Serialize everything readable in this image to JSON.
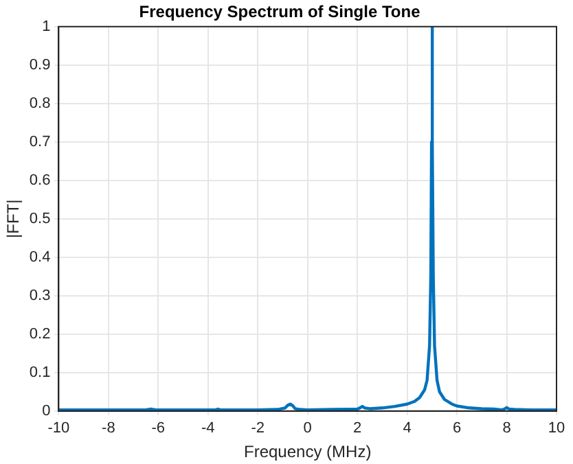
{
  "chart_data": {
    "type": "line",
    "title": "Frequency Spectrum of Single Tone",
    "xlabel": "Frequency (MHz)",
    "ylabel": "|FFT|",
    "x": [
      -10,
      -9,
      -8,
      -7,
      -6.5,
      -6.3,
      -6.1,
      -5,
      -4,
      -3.7,
      -3.6,
      -3.5,
      -2,
      -1.2,
      -0.9,
      -0.8,
      -0.7,
      -0.6,
      -0.5,
      -0.3,
      0,
      1,
      2,
      2.1,
      2.2,
      2.3,
      2.5,
      3,
      3.5,
      4,
      4.3,
      4.5,
      4.7,
      4.8,
      4.9,
      4.95,
      4.98,
      5,
      5.02,
      5.05,
      5.1,
      5.2,
      5.3,
      5.5,
      5.8,
      6,
      6.5,
      7,
      7.5,
      7.8,
      7.9,
      8,
      8.1,
      8.3,
      9,
      10
    ],
    "series": [
      {
        "color": "#0072bd",
        "values": [
          0.003,
          0.003,
          0.003,
          0.003,
          0.003,
          0.005,
          0.003,
          0.003,
          0.003,
          0.003,
          0.005,
          0.003,
          0.003,
          0.004,
          0.008,
          0.015,
          0.018,
          0.014,
          0.006,
          0.004,
          0.003,
          0.004,
          0.005,
          0.008,
          0.012,
          0.008,
          0.006,
          0.008,
          0.012,
          0.018,
          0.025,
          0.035,
          0.055,
          0.08,
          0.17,
          0.35,
          0.7,
          1,
          0.7,
          0.35,
          0.17,
          0.08,
          0.05,
          0.03,
          0.018,
          0.013,
          0.008,
          0.006,
          0.005,
          0.003,
          0.005,
          0.009,
          0.005,
          0.004,
          0.003,
          0.003
        ]
      }
    ],
    "xlim": [
      -10,
      10
    ],
    "xticks": [
      -10,
      -8,
      -6,
      -4,
      -2,
      0,
      2,
      4,
      6,
      8,
      10
    ],
    "ylim": [
      0,
      1
    ],
    "yticks": [
      0,
      0.1,
      0.2,
      0.3,
      0.4,
      0.5,
      0.6,
      0.7,
      0.8,
      0.9,
      1
    ],
    "grid": true,
    "legend": false,
    "line_style": "solid",
    "marker": "none"
  }
}
